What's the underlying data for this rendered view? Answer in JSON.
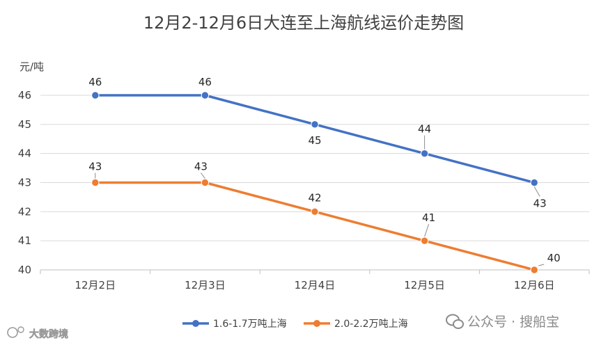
{
  "chart_data": {
    "type": "line",
    "title": "12月2-12月6日大连至上海航线运价走势图",
    "ylabel": "元/吨",
    "xlabel": "",
    "categories": [
      "12月2日",
      "12月3日",
      "12月4日",
      "12月5日",
      "12月6日"
    ],
    "ylim": [
      40,
      46
    ],
    "yticks": [
      "40",
      "41",
      "42",
      "43",
      "44",
      "45",
      "46"
    ],
    "grid": true,
    "legend": "bottom",
    "series": [
      {
        "name": "1.6-1.7万吨上海",
        "values": [
          46,
          46,
          45,
          44,
          43
        ],
        "color": "#4472C4"
      },
      {
        "name": "2.0-2.2万吨上海",
        "values": [
          43,
          43,
          42,
          41,
          40
        ],
        "color": "#ED7D31"
      }
    ]
  },
  "watermarks": {
    "wechat": "公众号 · 搜船宝",
    "source": "大数跨境"
  },
  "icons": {
    "wechat": "wechat-icon",
    "source": "source-logo-icon"
  }
}
